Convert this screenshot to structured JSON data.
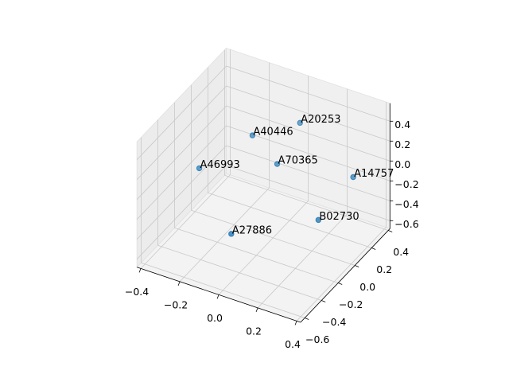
{
  "chart_data": {
    "type": "scatter3d",
    "color": "#1f77b4",
    "grid": true,
    "labels": [
      "A20253",
      "A40446",
      "A70365",
      "A46993",
      "A14757",
      "B02730",
      "A27886"
    ],
    "x": [
      0.04,
      -0.08,
      0.03,
      -0.22,
      0.3,
      0.25,
      0.0
    ],
    "y": [
      0.23,
      -0.06,
      -0.02,
      -0.37,
      0.26,
      -0.04,
      -0.5
    ],
    "z": [
      0.3,
      0.35,
      0.1,
      0.2,
      -0.1,
      -0.3,
      -0.2
    ],
    "xlim": [
      -0.42,
      0.42
    ],
    "ylim": [
      -0.65,
      0.42
    ],
    "zlim": [
      -0.68,
      0.58
    ],
    "xticks": [
      {
        "value": -0.4,
        "label": "−0.4"
      },
      {
        "value": -0.2,
        "label": "−0.2"
      },
      {
        "value": 0,
        "label": "0.0"
      },
      {
        "value": 0.2,
        "label": "0.2"
      },
      {
        "value": 0.4,
        "label": "0.4"
      }
    ],
    "yticks": [
      {
        "value": -0.6,
        "label": "−0.6"
      },
      {
        "value": -0.4,
        "label": "−0.4"
      },
      {
        "value": -0.2,
        "label": "−0.2"
      },
      {
        "value": 0,
        "label": "0.0"
      },
      {
        "value": 0.2,
        "label": "0.2"
      },
      {
        "value": 0.4,
        "label": "0.4"
      }
    ],
    "zticks": [
      {
        "value": -0.6,
        "label": "−0.6"
      },
      {
        "value": -0.4,
        "label": "−0.4"
      },
      {
        "value": -0.2,
        "label": "−0.2"
      },
      {
        "value": 0,
        "label": "0.0"
      },
      {
        "value": 0.2,
        "label": "0.2"
      },
      {
        "value": 0.4,
        "label": "0.4"
      }
    ]
  }
}
